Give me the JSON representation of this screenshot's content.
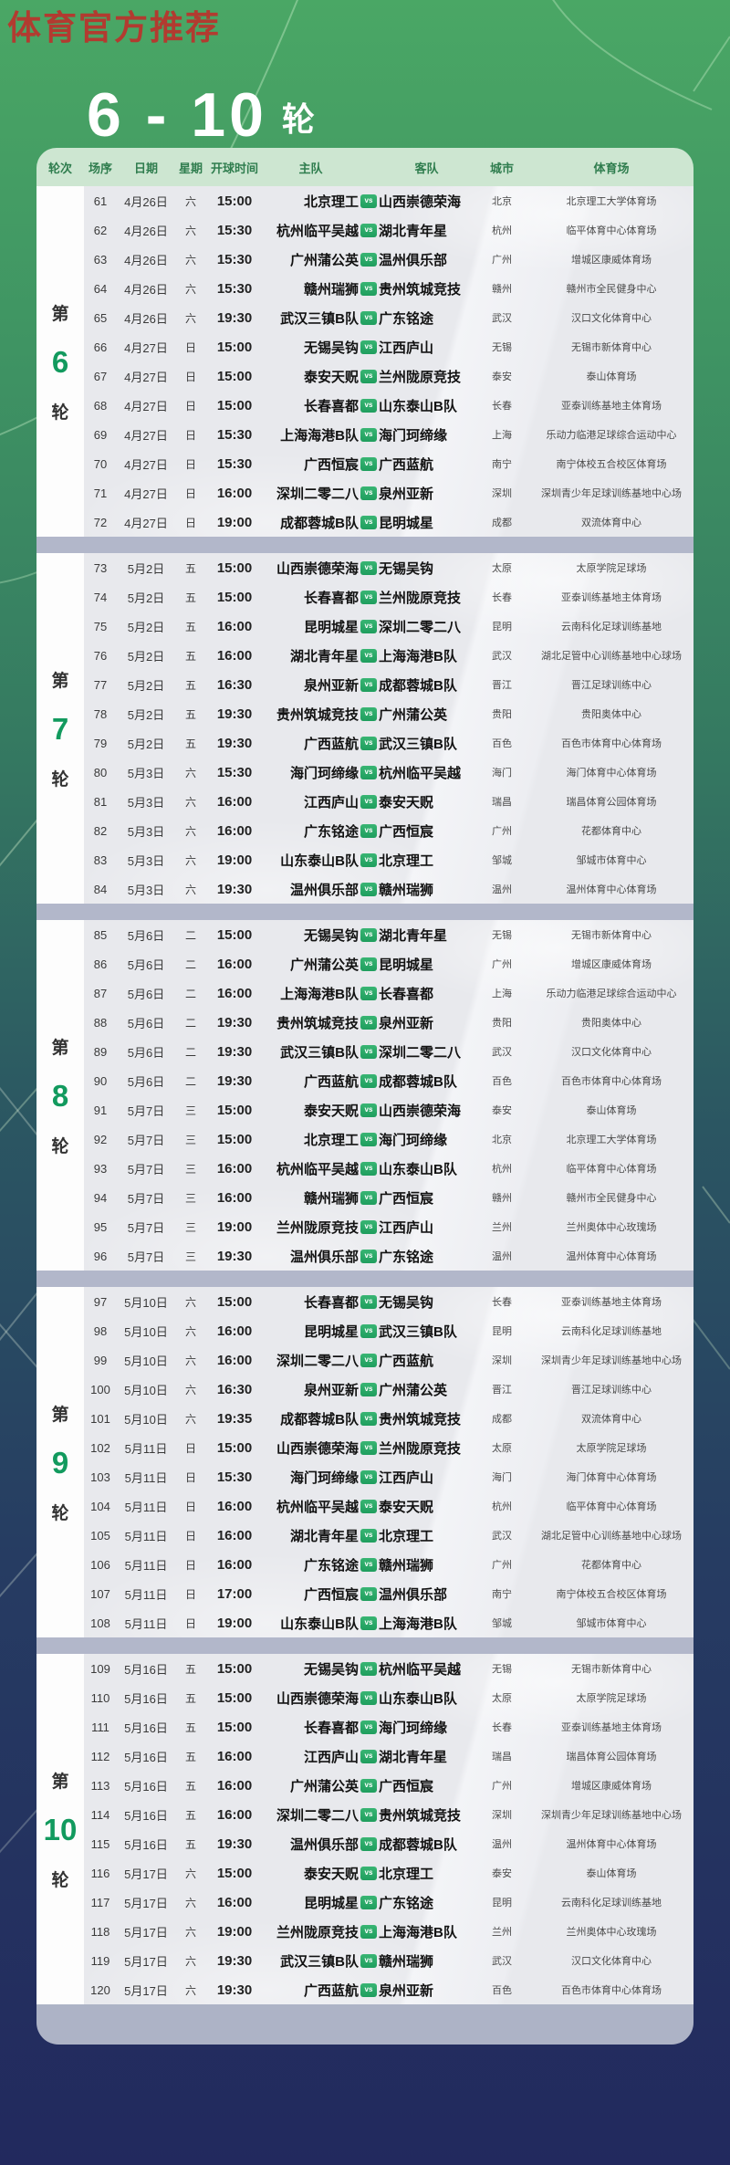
{
  "watermark": "体育官方推荐",
  "title": {
    "range": "6 - 10",
    "unit": "轮"
  },
  "table": {
    "headers": [
      "轮次",
      "场序",
      "日期",
      "星期",
      "开球时间",
      "主队",
      "客队",
      "城市",
      "体育场"
    ],
    "vs_label": "vs"
  },
  "colors": {
    "accent_green": "#129a5e",
    "header_bg": "#cde6d1",
    "header_text": "#2f7d4e",
    "vs_badge_green": "#2aa565",
    "watermark_red": "#b23b30",
    "separator_gray": "#b2b7ca",
    "page_top_green": "#4aa765",
    "page_bottom_navy": "#22295e"
  },
  "rounds": [
    {
      "prefix": "第",
      "number": "6",
      "suffix": "轮",
      "matches": [
        {
          "no": "61",
          "date": "4月26日",
          "weekday": "六",
          "time": "15:00",
          "home": "北京理工",
          "away": "山西崇德荣海",
          "city": "北京",
          "stadium": "北京理工大学体育场"
        },
        {
          "no": "62",
          "date": "4月26日",
          "weekday": "六",
          "time": "15:30",
          "home": "杭州临平吴越",
          "away": "湖北青年星",
          "city": "杭州",
          "stadium": "临平体育中心体育场"
        },
        {
          "no": "63",
          "date": "4月26日",
          "weekday": "六",
          "time": "15:30",
          "home": "广州蒲公英",
          "away": "温州俱乐部",
          "city": "广州",
          "stadium": "增城区康威体育场"
        },
        {
          "no": "64",
          "date": "4月26日",
          "weekday": "六",
          "time": "15:30",
          "home": "赣州瑞狮",
          "away": "贵州筑城竞技",
          "city": "赣州",
          "stadium": "赣州市全民健身中心"
        },
        {
          "no": "65",
          "date": "4月26日",
          "weekday": "六",
          "time": "19:30",
          "home": "武汉三镇B队",
          "away": "广东铭途",
          "city": "武汉",
          "stadium": "汉口文化体育中心"
        },
        {
          "no": "66",
          "date": "4月27日",
          "weekday": "日",
          "time": "15:00",
          "home": "无锡吴钩",
          "away": "江西庐山",
          "city": "无锡",
          "stadium": "无锡市新体育中心"
        },
        {
          "no": "67",
          "date": "4月27日",
          "weekday": "日",
          "time": "15:00",
          "home": "泰安天贶",
          "away": "兰州陇原竞技",
          "city": "泰安",
          "stadium": "泰山体育场"
        },
        {
          "no": "68",
          "date": "4月27日",
          "weekday": "日",
          "time": "15:00",
          "home": "长春喜都",
          "away": "山东泰山B队",
          "city": "长春",
          "stadium": "亚泰训练基地主体育场"
        },
        {
          "no": "69",
          "date": "4月27日",
          "weekday": "日",
          "time": "15:30",
          "home": "上海海港B队",
          "away": "海门珂缔缘",
          "city": "上海",
          "stadium": "乐动力临港足球综合运动中心"
        },
        {
          "no": "70",
          "date": "4月27日",
          "weekday": "日",
          "time": "15:30",
          "home": "广西恒宸",
          "away": "广西蓝航",
          "city": "南宁",
          "stadium": "南宁体校五合校区体育场"
        },
        {
          "no": "71",
          "date": "4月27日",
          "weekday": "日",
          "time": "16:00",
          "home": "深圳二零二八",
          "away": "泉州亚新",
          "city": "深圳",
          "stadium": "深圳青少年足球训练基地中心场"
        },
        {
          "no": "72",
          "date": "4月27日",
          "weekday": "日",
          "time": "19:00",
          "home": "成都蓉城B队",
          "away": "昆明城星",
          "city": "成都",
          "stadium": "双流体育中心"
        }
      ]
    },
    {
      "prefix": "第",
      "number": "7",
      "suffix": "轮",
      "matches": [
        {
          "no": "73",
          "date": "5月2日",
          "weekday": "五",
          "time": "15:00",
          "home": "山西崇德荣海",
          "away": "无锡吴钩",
          "city": "太原",
          "stadium": "太原学院足球场"
        },
        {
          "no": "74",
          "date": "5月2日",
          "weekday": "五",
          "time": "15:00",
          "home": "长春喜都",
          "away": "兰州陇原竞技",
          "city": "长春",
          "stadium": "亚泰训练基地主体育场"
        },
        {
          "no": "75",
          "date": "5月2日",
          "weekday": "五",
          "time": "16:00",
          "home": "昆明城星",
          "away": "深圳二零二八",
          "city": "昆明",
          "stadium": "云南科化足球训练基地"
        },
        {
          "no": "76",
          "date": "5月2日",
          "weekday": "五",
          "time": "16:00",
          "home": "湖北青年星",
          "away": "上海海港B队",
          "city": "武汉",
          "stadium": "湖北足管中心训练基地中心球场"
        },
        {
          "no": "77",
          "date": "5月2日",
          "weekday": "五",
          "time": "16:30",
          "home": "泉州亚新",
          "away": "成都蓉城B队",
          "city": "晋江",
          "stadium": "晋江足球训练中心"
        },
        {
          "no": "78",
          "date": "5月2日",
          "weekday": "五",
          "time": "19:30",
          "home": "贵州筑城竞技",
          "away": "广州蒲公英",
          "city": "贵阳",
          "stadium": "贵阳奥体中心"
        },
        {
          "no": "79",
          "date": "5月2日",
          "weekday": "五",
          "time": "19:30",
          "home": "广西蓝航",
          "away": "武汉三镇B队",
          "city": "百色",
          "stadium": "百色市体育中心体育场"
        },
        {
          "no": "80",
          "date": "5月3日",
          "weekday": "六",
          "time": "15:30",
          "home": "海门珂缔缘",
          "away": "杭州临平吴越",
          "city": "海门",
          "stadium": "海门体育中心体育场"
        },
        {
          "no": "81",
          "date": "5月3日",
          "weekday": "六",
          "time": "16:00",
          "home": "江西庐山",
          "away": "泰安天贶",
          "city": "瑞昌",
          "stadium": "瑞昌体育公园体育场"
        },
        {
          "no": "82",
          "date": "5月3日",
          "weekday": "六",
          "time": "16:00",
          "home": "广东铭途",
          "away": "广西恒宸",
          "city": "广州",
          "stadium": "花都体育中心"
        },
        {
          "no": "83",
          "date": "5月3日",
          "weekday": "六",
          "time": "19:00",
          "home": "山东泰山B队",
          "away": "北京理工",
          "city": "邹城",
          "stadium": "邹城市体育中心"
        },
        {
          "no": "84",
          "date": "5月3日",
          "weekday": "六",
          "time": "19:30",
          "home": "温州俱乐部",
          "away": "赣州瑞狮",
          "city": "温州",
          "stadium": "温州体育中心体育场"
        }
      ]
    },
    {
      "prefix": "第",
      "number": "8",
      "suffix": "轮",
      "matches": [
        {
          "no": "85",
          "date": "5月6日",
          "weekday": "二",
          "time": "15:00",
          "home": "无锡吴钩",
          "away": "湖北青年星",
          "city": "无锡",
          "stadium": "无锡市新体育中心"
        },
        {
          "no": "86",
          "date": "5月6日",
          "weekday": "二",
          "time": "16:00",
          "home": "广州蒲公英",
          "away": "昆明城星",
          "city": "广州",
          "stadium": "增城区康威体育场"
        },
        {
          "no": "87",
          "date": "5月6日",
          "weekday": "二",
          "time": "16:00",
          "home": "上海海港B队",
          "away": "长春喜都",
          "city": "上海",
          "stadium": "乐动力临港足球综合运动中心"
        },
        {
          "no": "88",
          "date": "5月6日",
          "weekday": "二",
          "time": "19:30",
          "home": "贵州筑城竞技",
          "away": "泉州亚新",
          "city": "贵阳",
          "stadium": "贵阳奥体中心"
        },
        {
          "no": "89",
          "date": "5月6日",
          "weekday": "二",
          "time": "19:30",
          "home": "武汉三镇B队",
          "away": "深圳二零二八",
          "city": "武汉",
          "stadium": "汉口文化体育中心"
        },
        {
          "no": "90",
          "date": "5月6日",
          "weekday": "二",
          "time": "19:30",
          "home": "广西蓝航",
          "away": "成都蓉城B队",
          "city": "百色",
          "stadium": "百色市体育中心体育场"
        },
        {
          "no": "91",
          "date": "5月7日",
          "weekday": "三",
          "time": "15:00",
          "home": "泰安天贶",
          "away": "山西崇德荣海",
          "city": "泰安",
          "stadium": "泰山体育场"
        },
        {
          "no": "92",
          "date": "5月7日",
          "weekday": "三",
          "time": "15:00",
          "home": "北京理工",
          "away": "海门珂缔缘",
          "city": "北京",
          "stadium": "北京理工大学体育场"
        },
        {
          "no": "93",
          "date": "5月7日",
          "weekday": "三",
          "time": "16:00",
          "home": "杭州临平吴越",
          "away": "山东泰山B队",
          "city": "杭州",
          "stadium": "临平体育中心体育场"
        },
        {
          "no": "94",
          "date": "5月7日",
          "weekday": "三",
          "time": "16:00",
          "home": "赣州瑞狮",
          "away": "广西恒宸",
          "city": "赣州",
          "stadium": "赣州市全民健身中心"
        },
        {
          "no": "95",
          "date": "5月7日",
          "weekday": "三",
          "time": "19:00",
          "home": "兰州陇原竞技",
          "away": "江西庐山",
          "city": "兰州",
          "stadium": "兰州奥体中心玫瑰场"
        },
        {
          "no": "96",
          "date": "5月7日",
          "weekday": "三",
          "time": "19:30",
          "home": "温州俱乐部",
          "away": "广东铭途",
          "city": "温州",
          "stadium": "温州体育中心体育场"
        }
      ]
    },
    {
      "prefix": "第",
      "number": "9",
      "suffix": "轮",
      "matches": [
        {
          "no": "97",
          "date": "5月10日",
          "weekday": "六",
          "time": "15:00",
          "home": "长春喜都",
          "away": "无锡吴钩",
          "city": "长春",
          "stadium": "亚泰训练基地主体育场"
        },
        {
          "no": "98",
          "date": "5月10日",
          "weekday": "六",
          "time": "16:00",
          "home": "昆明城星",
          "away": "武汉三镇B队",
          "city": "昆明",
          "stadium": "云南科化足球训练基地"
        },
        {
          "no": "99",
          "date": "5月10日",
          "weekday": "六",
          "time": "16:00",
          "home": "深圳二零二八",
          "away": "广西蓝航",
          "city": "深圳",
          "stadium": "深圳青少年足球训练基地中心场"
        },
        {
          "no": "100",
          "date": "5月10日",
          "weekday": "六",
          "time": "16:30",
          "home": "泉州亚新",
          "away": "广州蒲公英",
          "city": "晋江",
          "stadium": "晋江足球训练中心"
        },
        {
          "no": "101",
          "date": "5月10日",
          "weekday": "六",
          "time": "19:35",
          "home": "成都蓉城B队",
          "away": "贵州筑城竞技",
          "city": "成都",
          "stadium": "双流体育中心"
        },
        {
          "no": "102",
          "date": "5月11日",
          "weekday": "日",
          "time": "15:00",
          "home": "山西崇德荣海",
          "away": "兰州陇原竞技",
          "city": "太原",
          "stadium": "太原学院足球场"
        },
        {
          "no": "103",
          "date": "5月11日",
          "weekday": "日",
          "time": "15:30",
          "home": "海门珂缔缘",
          "away": "江西庐山",
          "city": "海门",
          "stadium": "海门体育中心体育场"
        },
        {
          "no": "104",
          "date": "5月11日",
          "weekday": "日",
          "time": "16:00",
          "home": "杭州临平吴越",
          "away": "泰安天贶",
          "city": "杭州",
          "stadium": "临平体育中心体育场"
        },
        {
          "no": "105",
          "date": "5月11日",
          "weekday": "日",
          "time": "16:00",
          "home": "湖北青年星",
          "away": "北京理工",
          "city": "武汉",
          "stadium": "湖北足管中心训练基地中心球场"
        },
        {
          "no": "106",
          "date": "5月11日",
          "weekday": "日",
          "time": "16:00",
          "home": "广东铭途",
          "away": "赣州瑞狮",
          "city": "广州",
          "stadium": "花都体育中心"
        },
        {
          "no": "107",
          "date": "5月11日",
          "weekday": "日",
          "time": "17:00",
          "home": "广西恒宸",
          "away": "温州俱乐部",
          "city": "南宁",
          "stadium": "南宁体校五合校区体育场"
        },
        {
          "no": "108",
          "date": "5月11日",
          "weekday": "日",
          "time": "19:00",
          "home": "山东泰山B队",
          "away": "上海海港B队",
          "city": "邹城",
          "stadium": "邹城市体育中心"
        }
      ]
    },
    {
      "prefix": "第",
      "number": "10",
      "suffix": "轮",
      "matches": [
        {
          "no": "109",
          "date": "5月16日",
          "weekday": "五",
          "time": "15:00",
          "home": "无锡吴钩",
          "away": "杭州临平吴越",
          "city": "无锡",
          "stadium": "无锡市新体育中心"
        },
        {
          "no": "110",
          "date": "5月16日",
          "weekday": "五",
          "time": "15:00",
          "home": "山西崇德荣海",
          "away": "山东泰山B队",
          "city": "太原",
          "stadium": "太原学院足球场"
        },
        {
          "no": "111",
          "date": "5月16日",
          "weekday": "五",
          "time": "15:00",
          "home": "长春喜都",
          "away": "海门珂缔缘",
          "city": "长春",
          "stadium": "亚泰训练基地主体育场"
        },
        {
          "no": "112",
          "date": "5月16日",
          "weekday": "五",
          "time": "16:00",
          "home": "江西庐山",
          "away": "湖北青年星",
          "city": "瑞昌",
          "stadium": "瑞昌体育公园体育场"
        },
        {
          "no": "113",
          "date": "5月16日",
          "weekday": "五",
          "time": "16:00",
          "home": "广州蒲公英",
          "away": "广西恒宸",
          "city": "广州",
          "stadium": "增城区康威体育场"
        },
        {
          "no": "114",
          "date": "5月16日",
          "weekday": "五",
          "time": "16:00",
          "home": "深圳二零二八",
          "away": "贵州筑城竞技",
          "city": "深圳",
          "stadium": "深圳青少年足球训练基地中心场"
        },
        {
          "no": "115",
          "date": "5月16日",
          "weekday": "五",
          "time": "19:30",
          "home": "温州俱乐部",
          "away": "成都蓉城B队",
          "city": "温州",
          "stadium": "温州体育中心体育场"
        },
        {
          "no": "116",
          "date": "5月17日",
          "weekday": "六",
          "time": "15:00",
          "home": "泰安天贶",
          "away": "北京理工",
          "city": "泰安",
          "stadium": "泰山体育场"
        },
        {
          "no": "117",
          "date": "5月17日",
          "weekday": "六",
          "time": "16:00",
          "home": "昆明城星",
          "away": "广东铭途",
          "city": "昆明",
          "stadium": "云南科化足球训练基地"
        },
        {
          "no": "118",
          "date": "5月17日",
          "weekday": "六",
          "time": "19:00",
          "home": "兰州陇原竞技",
          "away": "上海海港B队",
          "city": "兰州",
          "stadium": "兰州奥体中心玫瑰场"
        },
        {
          "no": "119",
          "date": "5月17日",
          "weekday": "六",
          "time": "19:30",
          "home": "武汉三镇B队",
          "away": "赣州瑞狮",
          "city": "武汉",
          "stadium": "汉口文化体育中心"
        },
        {
          "no": "120",
          "date": "5月17日",
          "weekday": "六",
          "time": "19:30",
          "home": "广西蓝航",
          "away": "泉州亚新",
          "city": "百色",
          "stadium": "百色市体育中心体育场"
        }
      ]
    }
  ]
}
